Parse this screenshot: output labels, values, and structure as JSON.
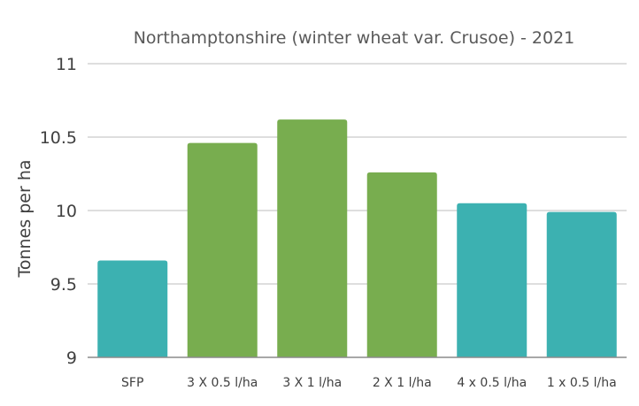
{
  "chart_data": {
    "type": "bar",
    "title": "Northamptonshire (winter wheat var. Crusoe) - 2021",
    "xlabel": "",
    "ylabel": "Tonnes per ha",
    "ylim": [
      9,
      11
    ],
    "yticks": [
      "9",
      "9.5",
      "10",
      "10.5",
      "11"
    ],
    "categories": [
      "SFP",
      "3 X 0.5 l/ha",
      "3 X 1 l/ha",
      "2 X 1 l/ha",
      "4 x 0.5 l/ha",
      "1 x 0.5 l/ha"
    ],
    "values": [
      9.66,
      10.46,
      10.62,
      10.26,
      10.05,
      9.99
    ],
    "bar_colors": [
      "#3cb1b1",
      "#78ad4f",
      "#78ad4f",
      "#78ad4f",
      "#3cb1b1",
      "#3cb1b1"
    ],
    "grid": true,
    "legend": "none"
  }
}
